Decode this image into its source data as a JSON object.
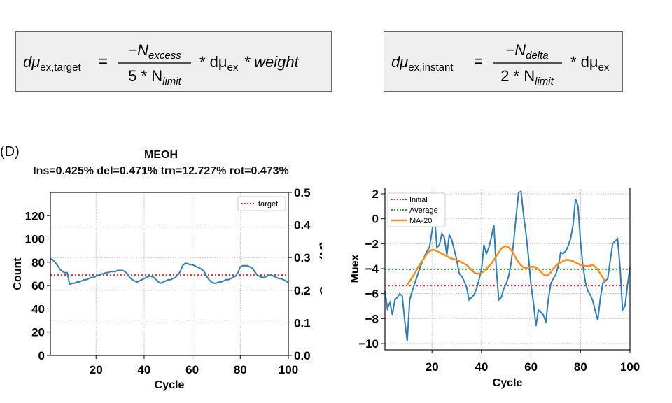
{
  "panel_label": "(D)",
  "equations": [
    {
      "lhs_mu": "dμ",
      "lhs_sub": "ex,target",
      "num": "−N",
      "num_sub": "excess",
      "den_pre": "5 * N",
      "den_sub": "limit",
      "rhs": "* dμ",
      "rhs_sub": "ex",
      "tail": "* weight"
    },
    {
      "lhs_mu": "dμ",
      "lhs_sub": "ex,instant",
      "num": "−N",
      "num_sub": "delta",
      "den_pre": "2 * N",
      "den_sub": "limit",
      "rhs": "* dμ",
      "rhs_sub": "ex",
      "tail": ""
    }
  ],
  "colors": {
    "line": "#2f7fb6",
    "target": "#e8312a",
    "average": "#2ca02c",
    "ma": "#ff8c1a",
    "grid": "#b0b0b0"
  },
  "chart_data": [
    {
      "type": "line",
      "title": "MEOH",
      "subtitle": "Ins=0.425% del=0.471% trn=12.727% rot=0.473%",
      "xlabel": "Cycle",
      "ylabel": "Count",
      "y2label": "Conc (M)",
      "xlim": [
        1,
        100
      ],
      "ylim": [
        0,
        140
      ],
      "y2lim": [
        0,
        0.5
      ],
      "xticks": [
        20,
        40,
        60,
        80,
        100
      ],
      "yticks": [
        0,
        20,
        40,
        60,
        80,
        100,
        120
      ],
      "y2ticks": [
        "0.0",
        "0.1",
        "0.2",
        "0.3",
        "0.4",
        "0.5"
      ],
      "y2tick_values": [
        0,
        0.1,
        0.2,
        0.3,
        0.4,
        0.5
      ],
      "grid": true,
      "legend": [
        "target"
      ],
      "legend_position": "top-right",
      "target": 69,
      "x": [
        1,
        2,
        3,
        4,
        5,
        6,
        7,
        8,
        9,
        10,
        11,
        12,
        13,
        14,
        15,
        16,
        17,
        18,
        19,
        20,
        21,
        22,
        23,
        24,
        25,
        26,
        27,
        28,
        29,
        30,
        31,
        32,
        33,
        34,
        35,
        36,
        37,
        38,
        39,
        40,
        41,
        42,
        43,
        44,
        45,
        46,
        47,
        48,
        49,
        50,
        51,
        52,
        53,
        54,
        55,
        56,
        57,
        58,
        59,
        60,
        61,
        62,
        63,
        64,
        65,
        66,
        67,
        68,
        69,
        70,
        71,
        72,
        73,
        74,
        75,
        76,
        77,
        78,
        79,
        80,
        81,
        82,
        83,
        84,
        85,
        86,
        87,
        88,
        89,
        90,
        91,
        92,
        93,
        94,
        95,
        96,
        97,
        98,
        99,
        100
      ],
      "values": [
        83,
        82,
        80,
        77,
        74,
        72,
        71,
        71,
        61,
        62,
        62,
        63,
        63,
        64,
        65,
        65,
        66,
        67,
        67,
        68,
        69,
        70,
        70,
        71,
        71,
        72,
        72,
        72,
        73,
        73,
        73,
        72,
        70,
        67,
        65,
        64,
        63,
        64,
        65,
        66,
        67,
        68,
        68,
        67,
        65,
        63,
        62,
        63,
        64,
        65,
        65,
        66,
        67,
        69,
        72,
        77,
        79,
        79,
        78,
        78,
        77,
        76,
        75,
        74,
        72,
        68,
        65,
        63,
        62,
        62,
        63,
        63,
        64,
        65,
        65,
        66,
        67,
        68,
        71,
        76,
        77,
        77,
        77,
        76,
        75,
        72,
        69,
        68,
        67,
        67,
        68,
        69,
        69,
        68,
        67,
        66,
        66,
        65,
        64,
        62
      ]
    },
    {
      "type": "line",
      "title": "",
      "xlabel": "Cycle",
      "ylabel": "Muex",
      "xlim": [
        1,
        100
      ],
      "ylim": [
        -10.5,
        2.5
      ],
      "xticks": [
        20,
        40,
        60,
        80,
        100
      ],
      "yticks": [
        -10,
        -8,
        -6,
        -4,
        -2,
        0,
        2
      ],
      "grid": true,
      "legend": [
        "Initial",
        "Average",
        "MA-20"
      ],
      "legend_position": "top-left",
      "initial": -5.35,
      "average": -4.05,
      "x": [
        1,
        2,
        3,
        4,
        5,
        6,
        7,
        8,
        9,
        10,
        11,
        12,
        13,
        14,
        15,
        16,
        17,
        18,
        19,
        20,
        21,
        22,
        23,
        24,
        25,
        26,
        27,
        28,
        29,
        30,
        31,
        32,
        33,
        34,
        35,
        36,
        37,
        38,
        39,
        40,
        41,
        42,
        43,
        44,
        45,
        46,
        47,
        48,
        49,
        50,
        51,
        52,
        53,
        54,
        55,
        56,
        57,
        58,
        59,
        60,
        61,
        62,
        63,
        64,
        65,
        66,
        67,
        68,
        69,
        70,
        71,
        72,
        73,
        74,
        75,
        76,
        77,
        78,
        79,
        80,
        81,
        82,
        83,
        84,
        85,
        86,
        87,
        88,
        89,
        90,
        91,
        92,
        93,
        94,
        95,
        96,
        97,
        98,
        99,
        100
      ],
      "values": [
        -5.8,
        -7.2,
        -6.7,
        -7.7,
        -6.5,
        -6.3,
        -6.0,
        -6.2,
        -8.2,
        -9.8,
        -6.5,
        -5.8,
        -5.2,
        -4.6,
        -4.0,
        -3.5,
        -3.0,
        -2.6,
        -2.3,
        -1.0,
        0.3,
        -2.3,
        -2.1,
        -1.2,
        -1.5,
        -2.9,
        -1.3,
        -1.7,
        -2.5,
        -3.3,
        -4.4,
        -4.6,
        -5.0,
        -5.5,
        -6.5,
        -6.3,
        -6.1,
        -5.6,
        -4.9,
        -4.1,
        -2.1,
        -2.8,
        -2.3,
        -1.5,
        -0.5,
        -4.0,
        -6.5,
        -6.3,
        -5.6,
        -5.2,
        -4.6,
        -3.5,
        -1.9,
        0.2,
        2.1,
        2.2,
        0.3,
        -1.2,
        -3.1,
        -5.3,
        -6.7,
        -8.6,
        -7.3,
        -7.5,
        -7.7,
        -8.3,
        -6.5,
        -5.2,
        -4.8,
        -4.5,
        -3.8,
        -2.7,
        -2.8,
        -2.6,
        -2.2,
        -1.6,
        -0.5,
        1.6,
        1.0,
        -1.8,
        -3.8,
        -5.1,
        -5.8,
        -6.1,
        -6.6,
        -7.4,
        -8.1,
        -6.4,
        -5.2,
        -5.0,
        -4.8,
        -3.4,
        -2.0,
        -1.8,
        -1.6,
        -3.9,
        -7.3,
        -7.0,
        -5.3,
        -3.9
      ],
      "ma_x": [
        10,
        11,
        12,
        13,
        14,
        15,
        16,
        17,
        18,
        19,
        20,
        21,
        22,
        23,
        24,
        25,
        26,
        27,
        28,
        29,
        30,
        31,
        32,
        33,
        34,
        35,
        36,
        37,
        38,
        39,
        40,
        41,
        42,
        43,
        44,
        45,
        46,
        47,
        48,
        49,
        50,
        51,
        52,
        53,
        54,
        55,
        56,
        57,
        58,
        59,
        60,
        61,
        62,
        63,
        64,
        65,
        66,
        67,
        68,
        69,
        70,
        71,
        72,
        73,
        74,
        75,
        76,
        77,
        78,
        79,
        80,
        81,
        82,
        83,
        84,
        85,
        86,
        87,
        88,
        89,
        90
      ],
      "ma_values": [
        -5.3,
        -5.0,
        -4.7,
        -4.4,
        -4.0,
        -3.7,
        -3.4,
        -3.1,
        -2.8,
        -2.6,
        -2.5,
        -2.5,
        -2.6,
        -2.7,
        -2.8,
        -2.9,
        -3.0,
        -3.1,
        -3.2,
        -3.25,
        -3.3,
        -3.4,
        -3.5,
        -3.6,
        -3.7,
        -3.9,
        -4.1,
        -4.3,
        -4.4,
        -4.4,
        -4.35,
        -4.2,
        -4.0,
        -3.8,
        -3.6,
        -3.3,
        -3.0,
        -2.7,
        -2.4,
        -2.25,
        -2.2,
        -2.3,
        -2.5,
        -2.8,
        -3.2,
        -3.5,
        -3.75,
        -3.9,
        -3.95,
        -3.9,
        -3.85,
        -3.85,
        -3.9,
        -4.05,
        -4.25,
        -4.45,
        -4.55,
        -4.5,
        -4.3,
        -4.0,
        -3.8,
        -3.6,
        -3.5,
        -3.4,
        -3.3,
        -3.3,
        -3.35,
        -3.4,
        -3.5,
        -3.6,
        -3.7,
        -3.75,
        -3.8,
        -3.8,
        -3.75,
        -3.7,
        -3.85,
        -4.1,
        -4.4,
        -4.7,
        -5.0
      ]
    }
  ]
}
